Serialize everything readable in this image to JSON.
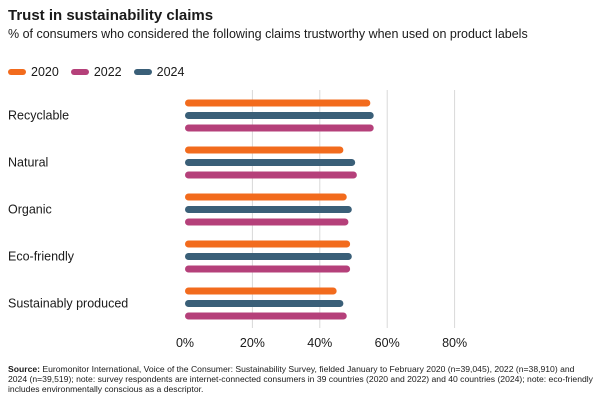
{
  "chart_data": {
    "type": "bar",
    "orientation": "horizontal",
    "title": "Trust in sustainability claims",
    "subtitle": "% of consumers who considered the following claims trustworthy when used on product labels",
    "categories": [
      "Recyclable",
      "Natural",
      "Organic",
      "Eco-friendly",
      "Sustainably produced"
    ],
    "series": [
      {
        "name": "2020",
        "color": "#f26b1d",
        "values": [
          55,
          47,
          48,
          49,
          45
        ]
      },
      {
        "name": "2022",
        "color": "#b5407a",
        "values": [
          56,
          51,
          48.5,
          49,
          48
        ]
      },
      {
        "name": "2024",
        "color": "#3a5f78",
        "values": [
          56,
          50.5,
          49.5,
          49.5,
          47
        ]
      }
    ],
    "bar_order": [
      "2020",
      "2024",
      "2022"
    ],
    "xlim": [
      0,
      80
    ],
    "xticks": [
      "0%",
      "20%",
      "40%",
      "60%",
      "80%"
    ],
    "legend": "top-left",
    "grid": "vertical"
  },
  "footnote": {
    "label": "Source:",
    "text": "Euromonitor International, Voice of the Consumer: Sustainability Survey, fielded January to February 2020 (n=39,045), 2022 (n=38,910) and 2024 (n=39,519); note: survey respondents are internet-connected consumers in 39 countries (2020 and 2022) and 40 countries (2024); note: eco-friendly includes environmentally conscious as a descriptor."
  }
}
